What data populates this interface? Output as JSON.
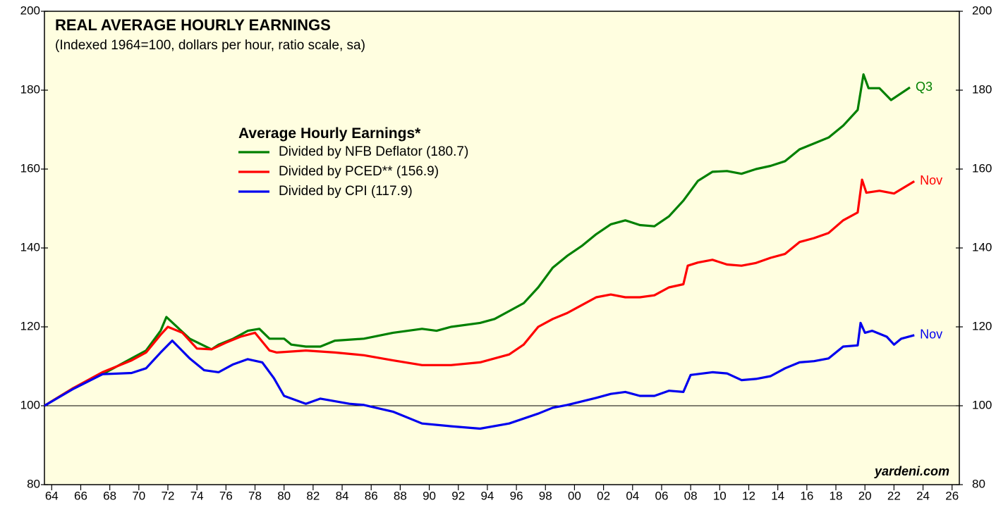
{
  "chart_data": {
    "type": "line",
    "title": "REAL AVERAGE HOURLY EARNINGS",
    "subtitle": "(Indexed 1964=100, dollars per hour, ratio scale, sa)",
    "legend_title": "Average Hourly Earnings*",
    "source": "yardeni.com",
    "reference_line": 100,
    "xlim": [
      1964,
      2027
    ],
    "ylim": [
      80,
      200
    ],
    "yticks": [
      80,
      100,
      120,
      140,
      160,
      180,
      200
    ],
    "xticks": [
      {
        "value": 1964.5,
        "label": "64"
      },
      {
        "value": 1966.5,
        "label": "66"
      },
      {
        "value": 1968.5,
        "label": "68"
      },
      {
        "value": 1970.5,
        "label": "70"
      },
      {
        "value": 1972.5,
        "label": "72"
      },
      {
        "value": 1974.5,
        "label": "74"
      },
      {
        "value": 1976.5,
        "label": "76"
      },
      {
        "value": 1978.5,
        "label": "78"
      },
      {
        "value": 1980.5,
        "label": "80"
      },
      {
        "value": 1982.5,
        "label": "82"
      },
      {
        "value": 1984.5,
        "label": "84"
      },
      {
        "value": 1986.5,
        "label": "86"
      },
      {
        "value": 1988.5,
        "label": "88"
      },
      {
        "value": 1990.5,
        "label": "90"
      },
      {
        "value": 1992.5,
        "label": "92"
      },
      {
        "value": 1994.5,
        "label": "94"
      },
      {
        "value": 1996.5,
        "label": "96"
      },
      {
        "value": 1998.5,
        "label": "98"
      },
      {
        "value": 2000.5,
        "label": "00"
      },
      {
        "value": 2002.5,
        "label": "02"
      },
      {
        "value": 2004.5,
        "label": "04"
      },
      {
        "value": 2006.5,
        "label": "06"
      },
      {
        "value": 2008.5,
        "label": "08"
      },
      {
        "value": 2010.5,
        "label": "10"
      },
      {
        "value": 2012.5,
        "label": "12"
      },
      {
        "value": 2014.5,
        "label": "14"
      },
      {
        "value": 2016.5,
        "label": "16"
      },
      {
        "value": 2018.5,
        "label": "18"
      },
      {
        "value": 2020.5,
        "label": "20"
      },
      {
        "value": 2022.5,
        "label": "22"
      },
      {
        "value": 2024.5,
        "label": "24"
      },
      {
        "value": 2026.5,
        "label": "26"
      }
    ],
    "series": [
      {
        "name": "Divided by NFB Deflator (180.7)",
        "color": "#008000",
        "end_label": "Q3",
        "x": [
          1964,
          1966,
          1968,
          1970,
          1971,
          1972,
          1972.4,
          1974,
          1975.5,
          1976,
          1977,
          1978,
          1978.8,
          1979.5,
          1980.5,
          1981,
          1982,
          1983,
          1984,
          1986,
          1988,
          1990,
          1991,
          1992,
          1994,
          1995,
          1996,
          1997,
          1998,
          1999,
          2000,
          2001,
          2002,
          2003,
          2004,
          2005,
          2006,
          2007,
          2008,
          2009,
          2010,
          2011,
          2012,
          2013,
          2014,
          2015,
          2016,
          2017,
          2018,
          2019,
          2020,
          2020.4,
          2020.75,
          2021.5,
          2022.3,
          2023.6
        ],
        "values": [
          100,
          104.5,
          108,
          112,
          114,
          119,
          122.5,
          117,
          114.3,
          115.5,
          117,
          119,
          119.5,
          117,
          117,
          115.5,
          115,
          115,
          116.5,
          117,
          118.5,
          119.5,
          119,
          120,
          121,
          122,
          124,
          126,
          130,
          135,
          138,
          140.5,
          143.5,
          146,
          147,
          145.8,
          145.5,
          148,
          152,
          157,
          159.3,
          159.5,
          158.8,
          160,
          160.8,
          162,
          165,
          166.5,
          168,
          171,
          175,
          184,
          180.5,
          180.5,
          177.5,
          180.7
        ]
      },
      {
        "name": "Divided by PCED** (156.9)",
        "color": "#ff0000",
        "end_label": "Nov",
        "x": [
          1964,
          1966,
          1968,
          1970,
          1971,
          1972,
          1972.5,
          1973.5,
          1974.5,
          1975.5,
          1976.5,
          1977.5,
          1978.5,
          1979.5,
          1980,
          1982,
          1984,
          1986,
          1988,
          1990,
          1992,
          1994,
          1996,
          1997,
          1998,
          1999,
          2000,
          2001,
          2002,
          2003,
          2004,
          2005,
          2006,
          2007,
          2008,
          2008.3,
          2009,
          2010,
          2011,
          2012,
          2013,
          2014,
          2015,
          2016,
          2017,
          2018,
          2019,
          2020,
          2020.3,
          2020.6,
          2021.5,
          2022.5,
          2023.9
        ],
        "values": [
          100,
          104.5,
          108.5,
          111.5,
          113.5,
          118,
          120,
          118.5,
          114.5,
          114.3,
          116,
          117.5,
          118.5,
          114,
          113.5,
          114,
          113.5,
          112.8,
          111.5,
          110.3,
          110.3,
          111,
          113,
          115.5,
          120,
          122,
          123.5,
          125.5,
          127.5,
          128.2,
          127.5,
          127.5,
          128,
          130,
          130.8,
          135.5,
          136.3,
          137,
          135.8,
          135.5,
          136.2,
          137.5,
          138.5,
          141.5,
          142.5,
          143.8,
          147,
          149,
          157.3,
          154,
          154.5,
          153.8,
          156.9
        ]
      },
      {
        "name": "Divided by CPI (117.9)",
        "color": "#0000ee",
        "end_label": "Nov",
        "x": [
          1964,
          1966,
          1968,
          1970,
          1971,
          1972,
          1972.8,
          1974,
          1975,
          1976,
          1977,
          1978,
          1979,
          1979.8,
          1980.5,
          1982,
          1983,
          1985,
          1986,
          1988,
          1990,
          1992,
          1994,
          1996,
          1998,
          1999,
          2000,
          2002,
          2003,
          2004,
          2005,
          2006,
          2007,
          2008,
          2008.5,
          2010,
          2011,
          2012,
          2013,
          2014,
          2015,
          2016,
          2017,
          2018,
          2019,
          2020,
          2020.2,
          2020.5,
          2021,
          2022,
          2022.5,
          2023,
          2023.9
        ],
        "values": [
          100,
          104.3,
          108,
          108.3,
          109.5,
          113.5,
          116.5,
          112,
          109,
          108.5,
          110.5,
          111.8,
          111,
          107,
          102.5,
          100.5,
          101.8,
          100.5,
          100.2,
          98.5,
          95.5,
          94.8,
          94.2,
          95.5,
          98,
          99.5,
          100.2,
          102,
          103,
          103.5,
          102.5,
          102.5,
          103.8,
          103.5,
          107.8,
          108.5,
          108.2,
          106.5,
          106.8,
          107.5,
          109.5,
          111,
          111.3,
          112,
          115,
          115.3,
          121,
          118.5,
          119,
          117.5,
          115.5,
          117,
          117.9
        ]
      }
    ]
  }
}
